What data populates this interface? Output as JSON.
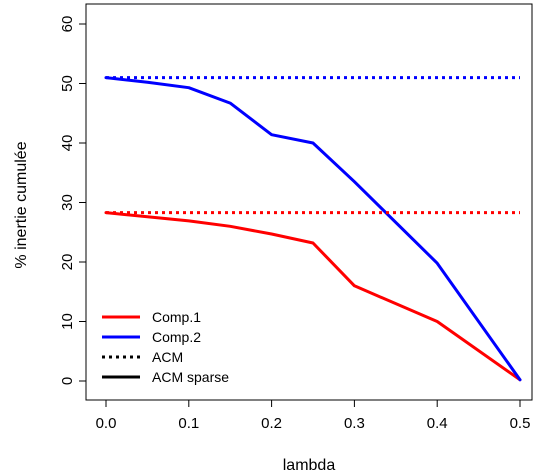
{
  "chart_data": {
    "type": "line",
    "title": "",
    "xlabel": "lambda",
    "ylabel": "% inertie cumulée",
    "xlim": [
      0,
      0.5
    ],
    "ylim": [
      0,
      60
    ],
    "x_ticks": [
      0.0,
      0.1,
      0.2,
      0.3,
      0.4,
      0.5
    ],
    "x_tick_labels": [
      "0.0",
      "0.1",
      "0.2",
      "0.3",
      "0.4",
      "0.5"
    ],
    "y_ticks": [
      0,
      10,
      20,
      30,
      40,
      50,
      60
    ],
    "y_tick_labels": [
      "0",
      "10",
      "20",
      "30",
      "40",
      "50",
      "60"
    ],
    "grid": false,
    "legend_position": "bottom-left",
    "series": [
      {
        "name": "",
        "color": "#ff0000",
        "style": "solid",
        "x": [
          0.0,
          0.05,
          0.1,
          0.15,
          0.2,
          0.25,
          0.3,
          0.4,
          0.5
        ],
        "values": [
          28.3,
          27.6,
          26.9,
          26.0,
          24.7,
          23.2,
          16.0,
          10.0,
          0.2
        ]
      },
      {
        "name": "",
        "color": "#0000ff",
        "style": "solid",
        "x": [
          0.0,
          0.05,
          0.1,
          0.15,
          0.2,
          0.25,
          0.3,
          0.4,
          0.5
        ],
        "values": [
          51.0,
          50.2,
          49.3,
          46.7,
          41.4,
          40.0,
          33.5,
          19.8,
          0.2
        ]
      },
      {
        "name": "",
        "color": "#ff0000",
        "style": "dotted",
        "x": [
          0.0,
          0.5
        ],
        "values": [
          28.3,
          28.3
        ]
      },
      {
        "name": "",
        "color": "#0000ff",
        "style": "dotted",
        "x": [
          0.0,
          0.5
        ],
        "values": [
          51.0,
          51.0
        ]
      }
    ],
    "legend": [
      {
        "label": "Comp.1",
        "color": "#ff0000",
        "style": "solid"
      },
      {
        "label": "Comp.2",
        "color": "#0000ff",
        "style": "solid"
      },
      {
        "label": "ACM",
        "color": "#000000",
        "style": "dotted"
      },
      {
        "label": "ACM sparse",
        "color": "#000000",
        "style": "solid"
      }
    ]
  }
}
